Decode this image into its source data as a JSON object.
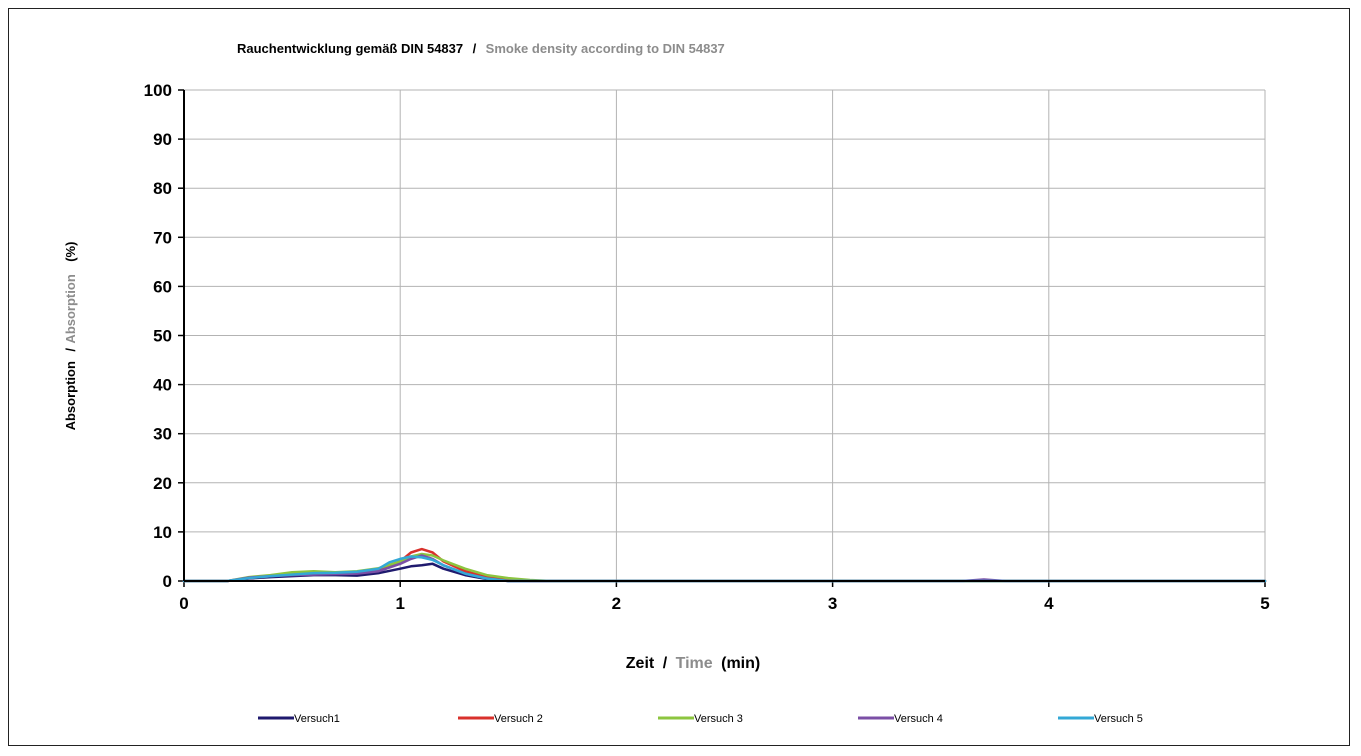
{
  "chart_data": {
    "type": "line",
    "title": {
      "main": "Rauchentwicklung gemäß DIN 54837",
      "separator": "/",
      "sub": "Smoke density  according to DIN 54837"
    },
    "xlabel": {
      "main": "Zeit",
      "separator": "/",
      "sub": "Time",
      "unit": "(min)"
    },
    "ylabel": {
      "main": "Absorption",
      "separator": "/",
      "sub": "Absorption",
      "unit": "(%)"
    },
    "xlim": [
      0,
      5
    ],
    "ylim": [
      0,
      100
    ],
    "xticks": [
      "0",
      "1",
      "2",
      "3",
      "4",
      "5"
    ],
    "yticks": [
      "0",
      "10",
      "20",
      "30",
      "40",
      "50",
      "60",
      "70",
      "80",
      "90",
      "100"
    ],
    "grid": true,
    "legend_position": "bottom",
    "series": [
      {
        "name": "Versuch1",
        "color": "#1f1a6e",
        "x": [
          0,
          0.2,
          0.3,
          0.4,
          0.5,
          0.6,
          0.7,
          0.8,
          0.9,
          1.0,
          1.05,
          1.1,
          1.15,
          1.2,
          1.3,
          1.4,
          1.5,
          5
        ],
        "y": [
          0,
          0,
          0.5,
          0.8,
          1.0,
          1.2,
          1.2,
          1.1,
          1.6,
          2.5,
          3.0,
          3.2,
          3.5,
          2.5,
          1.2,
          0.4,
          0,
          0
        ]
      },
      {
        "name": "Versuch 2",
        "color": "#d9312c",
        "x": [
          0,
          0.2,
          0.3,
          0.4,
          0.5,
          0.6,
          0.7,
          0.8,
          0.9,
          1.0,
          1.05,
          1.1,
          1.15,
          1.2,
          1.3,
          1.4,
          1.5,
          1.6,
          5
        ],
        "y": [
          0,
          0,
          0.6,
          1.0,
          1.4,
          1.6,
          1.5,
          1.6,
          2.4,
          4.0,
          5.8,
          6.5,
          5.8,
          4.0,
          2.0,
          0.8,
          0.3,
          0,
          0
        ]
      },
      {
        "name": "Versuch 3",
        "color": "#8cc53f",
        "x": [
          0,
          0.2,
          0.3,
          0.4,
          0.5,
          0.6,
          0.7,
          0.8,
          0.9,
          1.0,
          1.05,
          1.1,
          1.15,
          1.2,
          1.3,
          1.4,
          1.5,
          1.6,
          1.7,
          5
        ],
        "y": [
          0,
          0,
          0.8,
          1.2,
          1.8,
          2.0,
          1.8,
          2.0,
          2.6,
          4.0,
          5.0,
          5.5,
          5.2,
          4.2,
          2.5,
          1.2,
          0.6,
          0.2,
          0,
          0
        ]
      },
      {
        "name": "Versuch 4",
        "color": "#7b4fa6",
        "x": [
          0,
          0.2,
          0.3,
          0.4,
          0.5,
          0.6,
          0.7,
          0.8,
          0.9,
          1.0,
          1.05,
          1.1,
          1.15,
          1.2,
          1.3,
          1.4,
          1.5,
          3.6,
          3.7,
          3.8,
          5
        ],
        "y": [
          0,
          0,
          0.7,
          1.0,
          1.2,
          1.3,
          1.4,
          1.5,
          2.0,
          3.5,
          4.5,
          5.2,
          4.5,
          3.2,
          1.5,
          0.5,
          0,
          0,
          0.3,
          0,
          0
        ]
      },
      {
        "name": "Versuch 5",
        "color": "#33a8d6",
        "x": [
          0,
          0.2,
          0.3,
          0.4,
          0.5,
          0.6,
          0.7,
          0.8,
          0.9,
          0.95,
          1.0,
          1.05,
          1.1,
          1.15,
          1.2,
          1.3,
          1.4,
          1.5,
          5
        ],
        "y": [
          0,
          0,
          0.6,
          1.0,
          1.3,
          1.6,
          1.7,
          1.9,
          2.5,
          3.8,
          4.5,
          5.0,
          4.8,
          4.3,
          3.2,
          1.5,
          0.5,
          0,
          0
        ]
      }
    ]
  }
}
